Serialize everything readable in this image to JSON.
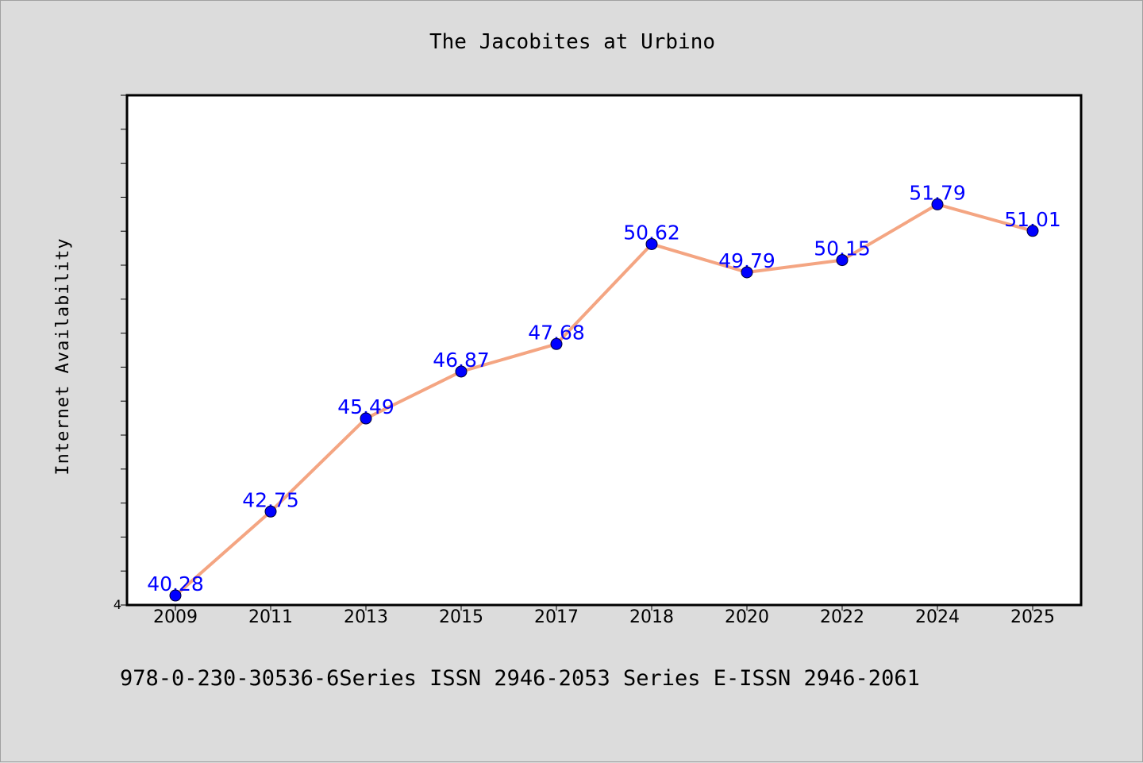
{
  "chart_data": {
    "type": "line",
    "title": "The Jacobites at Urbino",
    "xlabel": "",
    "ylabel": "Internet Availability",
    "categories": [
      "2009",
      "2011",
      "2013",
      "2015",
      "2017",
      "2018",
      "2020",
      "2022",
      "2024",
      "2025"
    ],
    "series": [
      {
        "values": [
          40.28,
          42.75,
          45.49,
          46.87,
          47.68,
          50.62,
          49.79,
          50.15,
          51.79,
          51.01
        ],
        "labels": [
          "40.28",
          "42.75",
          "45.49",
          "46.87",
          "47.68",
          "50.62",
          "49.79",
          "50.15",
          "51.79",
          "51.01"
        ],
        "line_color": "#f4a582",
        "marker_color": "#0000ff"
      }
    ],
    "ylim": [
      40,
      55
    ],
    "yticks_labeled": [
      "4"
    ],
    "grid": false,
    "legend": "none"
  },
  "footer": "978-0-230-30536-6Series ISSN 2946-2053 Series E-ISSN 2946-2061"
}
